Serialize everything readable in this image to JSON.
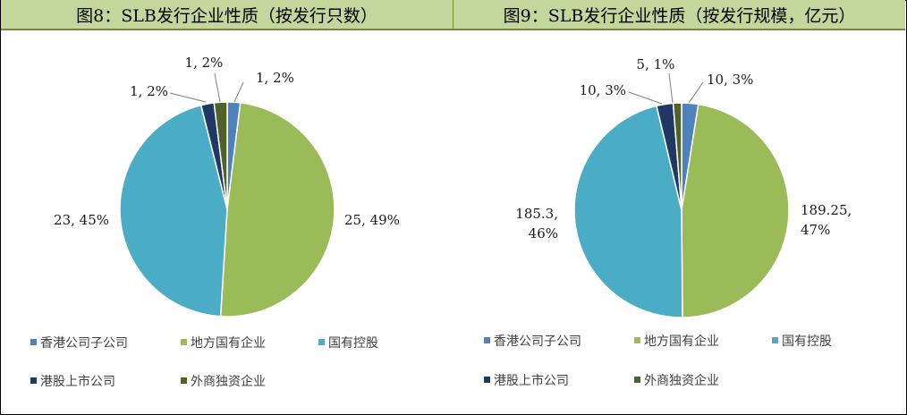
{
  "chart_data": [
    {
      "type": "pie",
      "title": "图8：SLB发行企业性质（按发行只数）",
      "series": [
        {
          "values": [
            1,
            25,
            23,
            1,
            1
          ]
        }
      ],
      "categories": [
        "香港公司子公司",
        "地方国有企业",
        "国有控股",
        "港股上市公司",
        "外商独资企业"
      ],
      "data_labels": [
        "1, 2%",
        "25, 49%",
        "23, 45%",
        "1, 2%",
        "1, 2%"
      ],
      "legend": "bottom"
    },
    {
      "type": "pie",
      "title": "图9：SLB发行企业性质（按发行规模，亿元）",
      "series": [
        {
          "values": [
            10,
            189.25,
            185.3,
            10,
            5
          ]
        }
      ],
      "categories": [
        "香港公司子公司",
        "地方国有企业",
        "国有控股",
        "港股上市公司",
        "外商独资企业"
      ],
      "data_labels": [
        "10, 3%",
        "189.25, 47%",
        "185.3, 46%",
        "10, 3%",
        "5, 1%"
      ],
      "legend": "bottom"
    }
  ],
  "colors": [
    "#4f81bd",
    "#9bbb59",
    "#4bacc6",
    "#1f3864",
    "#4f6228"
  ]
}
